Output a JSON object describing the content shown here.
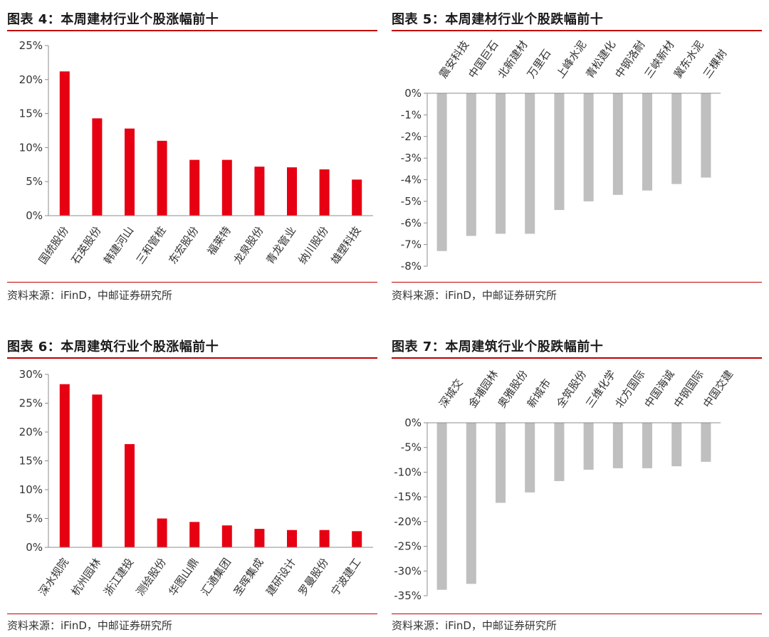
{
  "panels": [
    {
      "title": "图表 4：本周建材行业个股涨幅前十",
      "source": "资料来源：iFinD，中邮证券研究所",
      "chart_data": {
        "type": "bar",
        "categories": [
          "国统股份",
          "石英股份",
          "韩建河山",
          "三和管桩",
          "东宏股份",
          "福莱特",
          "龙泉股份",
          "青龙管业",
          "纳川股份",
          "雄塑科技"
        ],
        "values": [
          21.2,
          14.3,
          12.8,
          11.0,
          8.2,
          8.2,
          7.2,
          7.1,
          6.8,
          5.3
        ],
        "ylim": [
          0,
          25
        ],
        "yticks": [
          0,
          5,
          10,
          15,
          20,
          25
        ],
        "ytick_labels": [
          "0%",
          "5%",
          "10%",
          "15%",
          "20%",
          "25%"
        ],
        "bar_color": "#e60012",
        "category_labels_position": "bottom",
        "grid": false
      }
    },
    {
      "title": "图表 5：本周建材行业个股跌幅前十",
      "source": "资料来源：iFinD，中邮证券研究所",
      "chart_data": {
        "type": "bar",
        "categories": [
          "震安科技",
          "中国巨石",
          "北新建材",
          "万里石",
          "上峰水泥",
          "青松建化",
          "中钢洛耐",
          "三峡新材",
          "冀东水泥",
          "三棵树"
        ],
        "values": [
          -7.3,
          -6.6,
          -6.5,
          -6.5,
          -5.4,
          -5.0,
          -4.7,
          -4.5,
          -4.2,
          -3.9
        ],
        "ylim": [
          -8,
          0
        ],
        "yticks": [
          0,
          -1,
          -2,
          -3,
          -4,
          -5,
          -6,
          -7,
          -8
        ],
        "ytick_labels": [
          "0%",
          "-1%",
          "-2%",
          "-3%",
          "-4%",
          "-5%",
          "-6%",
          "-7%",
          "-8%"
        ],
        "bar_color": "#bfbfbf",
        "category_labels_position": "top",
        "grid": false
      }
    },
    {
      "title": "图表 6：本周建筑行业个股涨幅前十",
      "source": "资料来源：iFinD，中邮证券研究所",
      "chart_data": {
        "type": "bar",
        "categories": [
          "深水规院",
          "杭州园林",
          "浙江建投",
          "测绘股份",
          "华图山鼎",
          "汇通集团",
          "圣晖集成",
          "建研设计",
          "罗曼股份",
          "宁波建工"
        ],
        "values": [
          28.3,
          26.5,
          17.9,
          5.0,
          4.4,
          3.8,
          3.2,
          3.0,
          3.0,
          2.8
        ],
        "ylim": [
          0,
          30
        ],
        "yticks": [
          0,
          5,
          10,
          15,
          20,
          25,
          30
        ],
        "ytick_labels": [
          "0%",
          "5%",
          "10%",
          "15%",
          "20%",
          "25%",
          "30%"
        ],
        "bar_color": "#e60012",
        "category_labels_position": "bottom",
        "grid": false
      }
    },
    {
      "title": "图表 7：本周建筑行业个股跌幅前十",
      "source": "资料来源：iFinD，中邮证券研究所",
      "chart_data": {
        "type": "bar",
        "categories": [
          "深城交",
          "金埔园林",
          "奥雅股份",
          "新城市",
          "全筑股份",
          "三维化学",
          "北方国际",
          "中国海诚",
          "中钢国际",
          "中国交建"
        ],
        "values": [
          -33.8,
          -32.6,
          -16.2,
          -14.1,
          -11.8,
          -9.5,
          -9.2,
          -9.2,
          -8.8,
          -7.9
        ],
        "ylim": [
          -35,
          0
        ],
        "yticks": [
          0,
          -5,
          -10,
          -15,
          -20,
          -25,
          -30,
          -35
        ],
        "ytick_labels": [
          "0%",
          "-5%",
          "-10%",
          "-15%",
          "-20%",
          "-25%",
          "-30%",
          "-35%"
        ],
        "bar_color": "#bfbfbf",
        "category_labels_position": "top",
        "grid": false
      }
    }
  ]
}
